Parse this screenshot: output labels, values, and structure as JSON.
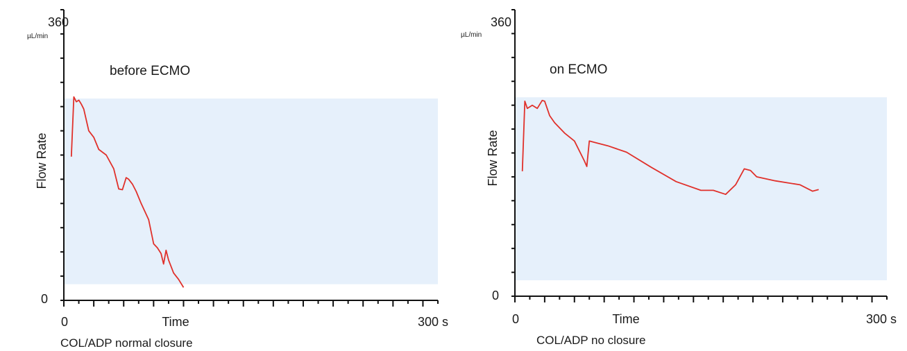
{
  "chart_data": [
    {
      "type": "line",
      "title": "before ECMO",
      "xlabel": "Time",
      "ylabel": "Flow Rate",
      "caption": "COL/ADP normal closure",
      "y_top_label": "360",
      "y_unit": "µL/min",
      "y_bottom_label": "0",
      "x_left_label": "0",
      "x_right_label": "300 s",
      "xlim": [
        0,
        300
      ],
      "ylim": [
        0,
        360
      ],
      "normal_range": [
        20,
        250
      ],
      "grid": false,
      "series": [
        {
          "color": "#e0302a",
          "x": [
            6,
            8,
            10,
            12,
            14,
            16,
            20,
            24,
            28,
            34,
            40,
            44,
            47,
            50,
            52,
            55,
            58,
            62,
            68,
            72,
            75,
            78,
            80,
            82,
            84,
            86,
            88,
            92,
            96
          ],
          "y": [
            178,
            252,
            246,
            248,
            243,
            237,
            210,
            202,
            187,
            180,
            163,
            138,
            137,
            152,
            150,
            144,
            135,
            120,
            100,
            70,
            65,
            58,
            45,
            62,
            50,
            42,
            34,
            26,
            16
          ]
        }
      ]
    },
    {
      "type": "line",
      "title": "on ECMO",
      "xlabel": "Time",
      "ylabel": "Flow Rate",
      "caption": "COL/ADP no closure",
      "y_top_label": "360",
      "y_unit": "µL/min",
      "y_bottom_label": "0",
      "x_left_label": "0",
      "x_right_label": "300 s",
      "xlim": [
        0,
        300
      ],
      "ylim": [
        0,
        360
      ],
      "normal_range": [
        20,
        250
      ],
      "grid": false,
      "series": [
        {
          "color": "#e0302a",
          "x": [
            6,
            8,
            10,
            14,
            18,
            22,
            24,
            28,
            32,
            40,
            48,
            56,
            58,
            60,
            65,
            75,
            90,
            110,
            130,
            150,
            160,
            170,
            178,
            185,
            190,
            195,
            210,
            230,
            240,
            245
          ],
          "y": [
            157,
            245,
            236,
            240,
            236,
            246,
            245,
            227,
            218,
            205,
            195,
            170,
            163,
            195,
            193,
            189,
            181,
            162,
            144,
            133,
            133,
            128,
            140,
            160,
            158,
            150,
            145,
            140,
            132,
            134
          ]
        }
      ]
    }
  ]
}
